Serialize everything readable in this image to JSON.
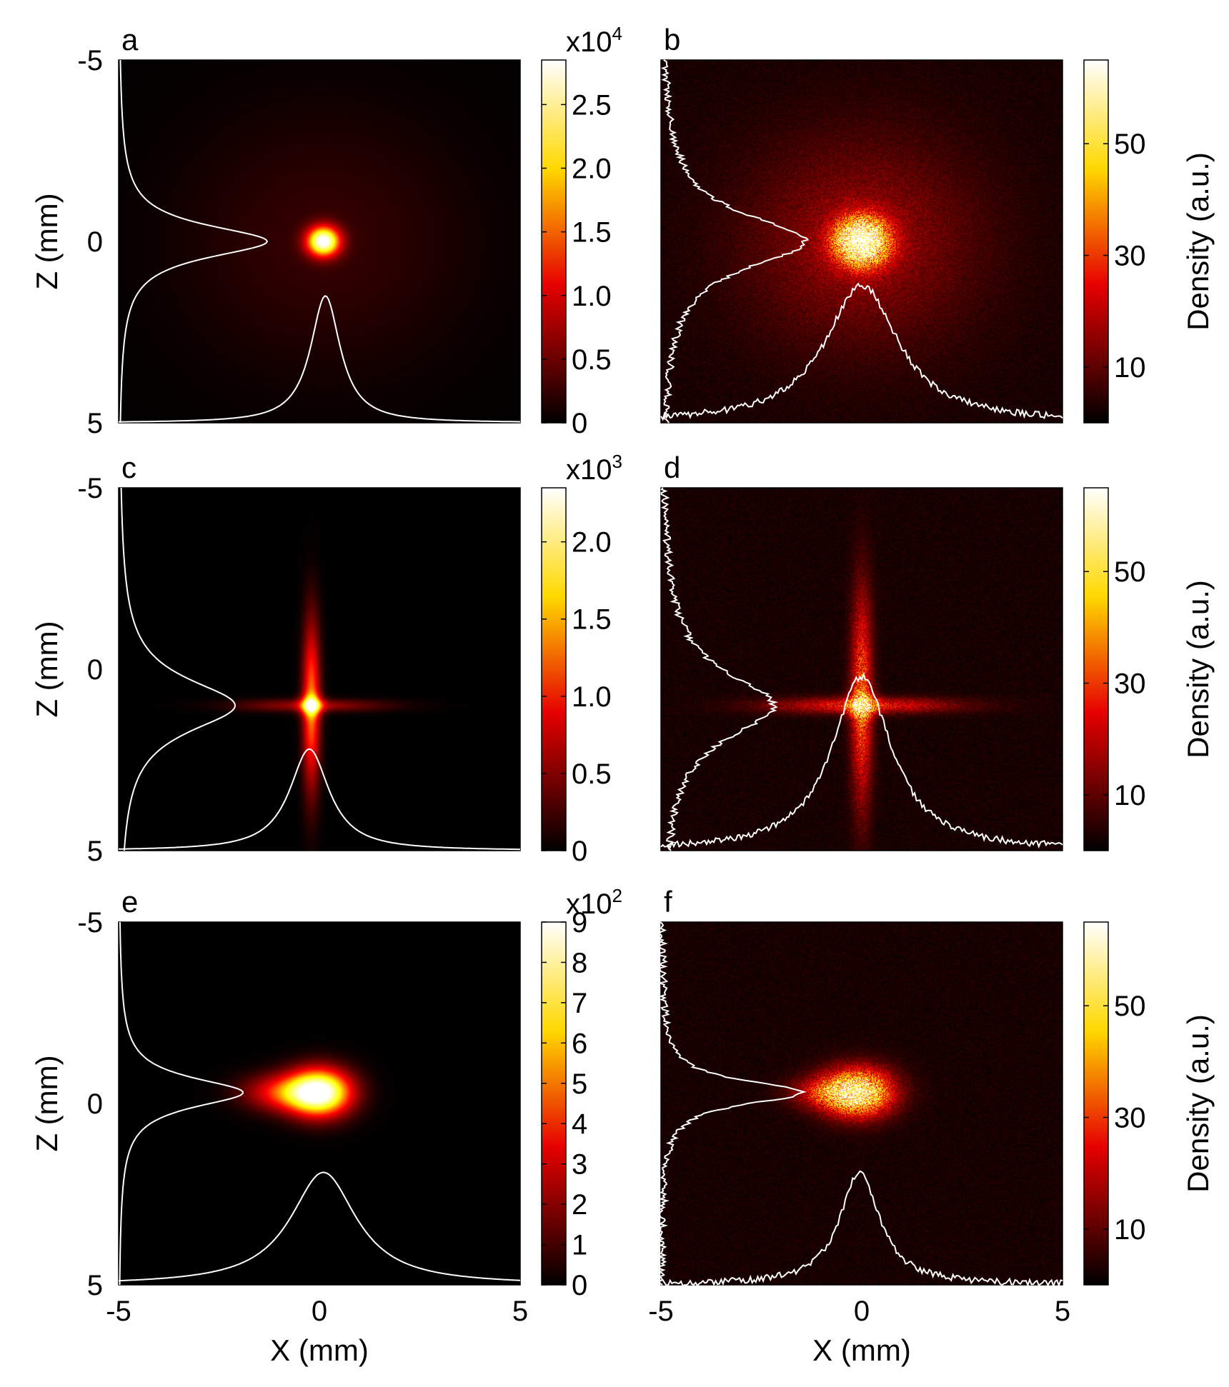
{
  "chart_data": [
    {
      "panel": "a",
      "type": "heatmap",
      "xlabel": "",
      "ylabel": "Z (mm)",
      "xlim": [
        -5,
        5
      ],
      "ylim": [
        -5,
        5
      ],
      "yticks": [
        "-5",
        "0",
        "5"
      ],
      "xticks": [],
      "colorbar": {
        "exponent_base": "x10",
        "exponent_power": "4",
        "label": "",
        "ticks": [
          "0",
          "0.5",
          "1.0",
          "1.5",
          "2.0",
          "2.5"
        ],
        "range": [
          0,
          2.85
        ]
      },
      "blobs": [
        {
          "x": 0.1,
          "z": 0.0,
          "sx": 0.28,
          "sz": 0.28,
          "peak": 2.85
        },
        {
          "x": 0.1,
          "z": 0.0,
          "sx": 2.6,
          "sz": 2.6,
          "peak": 0.22
        }
      ],
      "profiles": {
        "z_profile": {
          "peak_z": 0.0,
          "peak_x": -1.3,
          "width": 0.55,
          "baseline_x": -5
        },
        "x_profile": {
          "peak_x": 0.15,
          "peak_z": 1.5,
          "width": 0.45,
          "baseline_z": 5
        }
      },
      "noisy": false
    },
    {
      "panel": "b",
      "type": "heatmap",
      "xlabel": "",
      "ylabel": "",
      "xlim": [
        -5,
        5
      ],
      "ylim": [
        -5,
        5
      ],
      "yticks": [],
      "xticks": [],
      "colorbar": {
        "exponent_base": "",
        "exponent_power": "",
        "label": "Density (a.u.)",
        "ticks": [
          "10",
          "30",
          "50"
        ],
        "range": [
          0,
          65
        ]
      },
      "blobs": [
        {
          "x": 0.0,
          "z": 0.0,
          "sx": 0.45,
          "sz": 0.45,
          "peak": 65
        },
        {
          "x": 0.0,
          "z": 0.0,
          "sx": 2.0,
          "sz": 2.0,
          "peak": 12
        }
      ],
      "profiles": {
        "z_profile": {
          "peak_z": 0.0,
          "peak_x": -1.4,
          "width": 0.9,
          "baseline_x": -5
        },
        "x_profile": {
          "peak_x": 0.0,
          "peak_z": 1.2,
          "width": 1.1,
          "baseline_z": 5
        }
      },
      "noisy": true
    },
    {
      "panel": "c",
      "type": "heatmap",
      "xlabel": "",
      "ylabel": "Z (mm)",
      "xlim": [
        -5,
        5
      ],
      "ylim": [
        -5,
        5
      ],
      "yticks": [
        "-5",
        "0",
        "5"
      ],
      "xticks": [],
      "colorbar": {
        "exponent_base": "x10",
        "exponent_power": "3",
        "label": "",
        "ticks": [
          "0",
          "0.5",
          "1.0",
          "1.5",
          "2.0"
        ],
        "range": [
          0,
          2.35
        ]
      },
      "blobs": [
        {
          "x": -0.2,
          "z": 1.0,
          "sx": 0.15,
          "sz": 1.6,
          "peak": 1.25
        },
        {
          "x": -0.2,
          "z": 1.0,
          "sx": 1.3,
          "sz": 0.12,
          "peak": 0.55
        },
        {
          "x": -0.2,
          "z": 1.0,
          "sx": 0.2,
          "sz": 0.2,
          "peak": 1.0
        }
      ],
      "profiles": {
        "z_profile": {
          "peak_z": 1.0,
          "peak_x": -2.1,
          "width": 0.9,
          "baseline_x": -5
        },
        "x_profile": {
          "peak_x": -0.25,
          "peak_z": 2.2,
          "width": 0.6,
          "baseline_z": 5
        }
      },
      "noisy": false
    },
    {
      "panel": "d",
      "type": "heatmap",
      "xlabel": "",
      "ylabel": "",
      "xlim": [
        -5,
        5
      ],
      "ylim": [
        -5,
        5
      ],
      "yticks": [],
      "xticks": [],
      "colorbar": {
        "exponent_base": "",
        "exponent_power": "",
        "label": "Density (a.u.)",
        "ticks": [
          "10",
          "30",
          "50"
        ],
        "range": [
          0,
          65
        ]
      },
      "blobs": [
        {
          "x": 0.0,
          "z": 0.8,
          "sx": 0.18,
          "sz": 2.0,
          "peak": 28
        },
        {
          "x": 0.0,
          "z": 1.0,
          "sx": 1.6,
          "sz": 0.15,
          "peak": 22
        },
        {
          "x": 0.0,
          "z": 1.0,
          "sx": 0.25,
          "sz": 0.25,
          "peak": 20
        }
      ],
      "profiles": {
        "z_profile": {
          "peak_z": 1.0,
          "peak_x": -2.2,
          "width": 1.1,
          "baseline_x": -5
        },
        "x_profile": {
          "peak_x": 0.0,
          "peak_z": 0.2,
          "width": 0.9,
          "baseline_z": 5
        }
      },
      "noisy": true
    },
    {
      "panel": "e",
      "type": "heatmap",
      "xlabel": "X (mm)",
      "ylabel": "Z (mm)",
      "xlim": [
        -5,
        5
      ],
      "ylim": [
        -5,
        5
      ],
      "yticks": [
        "-5",
        "0",
        "5"
      ],
      "xticks": [
        "-5",
        "0",
        "5"
      ],
      "colorbar": {
        "exponent_base": "x10",
        "exponent_power": "2",
        "label": "",
        "ticks": [
          "0",
          "1",
          "2",
          "3",
          "4",
          "5",
          "6",
          "7",
          "8",
          "9"
        ],
        "range": [
          0,
          9
        ]
      },
      "blobs": [
        {
          "x": 0.0,
          "z": -0.3,
          "sx": 0.55,
          "sz": 0.45,
          "peak": 9
        },
        {
          "x": -0.9,
          "z": -0.3,
          "sx": 0.7,
          "sz": 0.35,
          "peak": 3.5
        }
      ],
      "profiles": {
        "z_profile": {
          "peak_z": -0.3,
          "peak_x": -1.9,
          "width": 0.5,
          "baseline_x": -5
        },
        "x_profile": {
          "peak_x": 0.1,
          "peak_z": 1.9,
          "width": 1.0,
          "baseline_z": 5
        }
      },
      "noisy": false
    },
    {
      "panel": "f",
      "type": "heatmap",
      "xlabel": "X (mm)",
      "ylabel": "",
      "xlim": [
        -5,
        5
      ],
      "ylim": [
        -5,
        5
      ],
      "yticks": [],
      "xticks": [
        "-5",
        "0",
        "5"
      ],
      "colorbar": {
        "exponent_base": "",
        "exponent_power": "",
        "label": "Density (a.u.)",
        "ticks": [
          "10",
          "30",
          "50"
        ],
        "range": [
          0,
          65
        ]
      },
      "blobs": [
        {
          "x": -0.1,
          "z": -0.3,
          "sx": 0.6,
          "sz": 0.45,
          "peak": 55
        },
        {
          "x": -1.0,
          "z": -0.3,
          "sx": 0.6,
          "sz": 0.3,
          "peak": 15
        }
      ],
      "profiles": {
        "z_profile": {
          "peak_z": -0.3,
          "peak_x": -1.5,
          "width": 0.4,
          "baseline_x": -5
        },
        "x_profile": {
          "peak_x": -0.05,
          "peak_z": 1.9,
          "width": 0.6,
          "baseline_z": 5
        }
      },
      "noisy": true
    }
  ]
}
